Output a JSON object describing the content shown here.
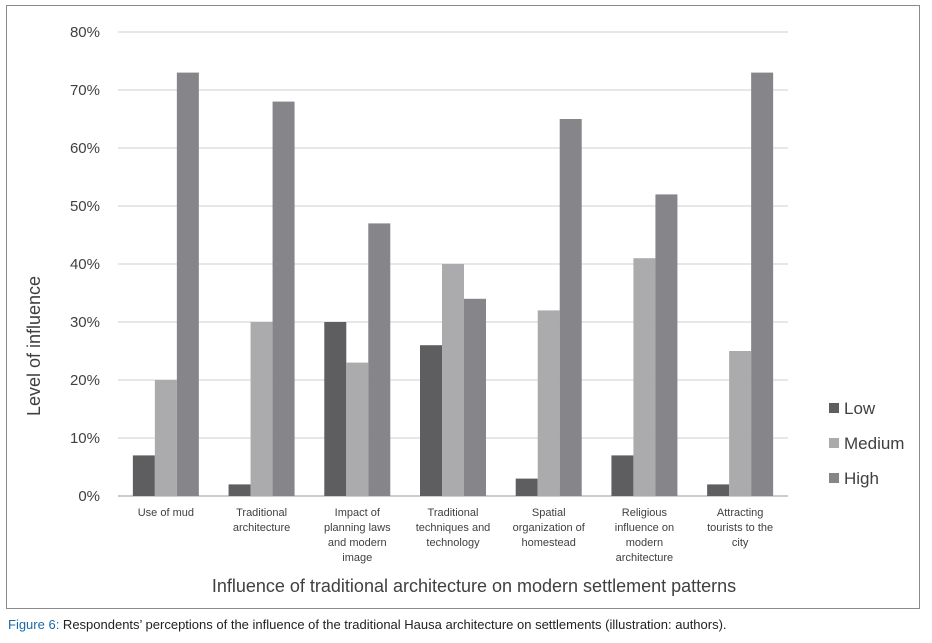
{
  "chart_data": {
    "type": "bar",
    "categories": [
      [
        "Use of mud"
      ],
      [
        "Traditional",
        "architecture"
      ],
      [
        "Impact of",
        "planning laws",
        "and modern",
        "image"
      ],
      [
        "Traditional",
        "techniques and",
        "technology"
      ],
      [
        "Spatial",
        "organization of",
        "homestead"
      ],
      [
        "Religious",
        "influence on",
        "modern",
        "architecture"
      ],
      [
        "Attracting",
        "tourists to the",
        "city"
      ]
    ],
    "series": [
      {
        "name": "Low",
        "color": "#5e5e60",
        "values": [
          7,
          2,
          30,
          26,
          3,
          7,
          2
        ]
      },
      {
        "name": "Medium",
        "color": "#ababad",
        "values": [
          20,
          30,
          23,
          40,
          32,
          41,
          25
        ]
      },
      {
        "name": "High",
        "color": "#86868a",
        "values": [
          73,
          68,
          47,
          34,
          65,
          52,
          73
        ]
      }
    ],
    "xlabel": "Influence of traditional architecture on modern settlement patterns",
    "ylabel": "Level of influence",
    "ylim": [
      0,
      80
    ],
    "yticks": [
      "0%",
      "10%",
      "20%",
      "30%",
      "40%",
      "50%",
      "60%",
      "70%",
      "80%"
    ],
    "grid": true,
    "legend_position": "right"
  },
  "caption": {
    "label": "Figure 6:",
    "text": " Respondents’ perceptions of the influence of the traditional Hausa architecture on settlements (illustration: authors)."
  }
}
